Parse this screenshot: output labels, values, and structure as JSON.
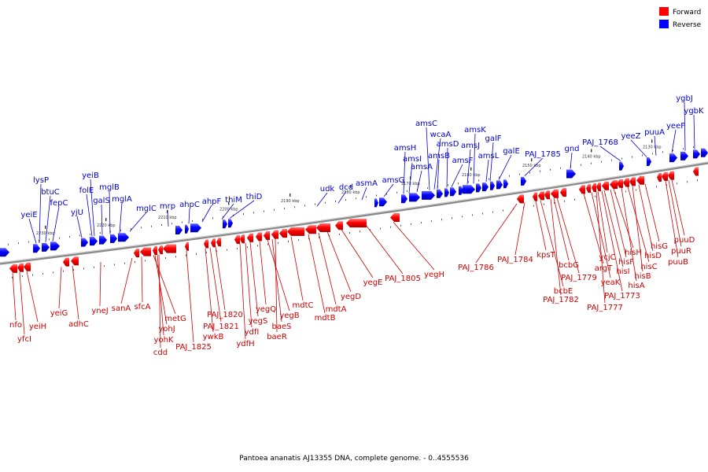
{
  "legend": {
    "forward_label": "Forward",
    "reverse_label": "Reverse",
    "forward_color": "#ff0000",
    "reverse_color": "#0000ff"
  },
  "caption": "Pantoea ananatis AJ13355 DNA, complete genome. - 0..4555536",
  "ticks": [
    "2230 kbp",
    "2220 kbp",
    "2210 kbp",
    "2200 kbp",
    "2190 kbp",
    "2180 kbp",
    "2170 kbp",
    "2160 kbp",
    "2150 kbp",
    "2140 kbp",
    "2130 kbp"
  ],
  "reverse_genes": [
    "yeiE",
    "lysP",
    "btuC",
    "fepC",
    "yjU",
    "folE",
    "yeiB",
    "galS",
    "mglB",
    "mglA",
    "mglC",
    "mrp",
    "ahpC",
    "ahpF",
    "thiM",
    "thiD",
    "udk",
    "dcd",
    "asmA",
    "amsG",
    "amsH",
    "amsI",
    "amsA",
    "amsC",
    "wcaA",
    "amsB",
    "amsD",
    "amsF",
    "amsJ",
    "amsK",
    "amsL",
    "galF",
    "galE",
    "PAJ_1785",
    "gnd",
    "PAJ_1768",
    "yeeZ",
    "puuA",
    "yeeF",
    "ygbJ",
    "ygbK"
  ],
  "forward_genes": [
    "nfo",
    "yfcI",
    "yeiH",
    "yeiG",
    "adhC",
    "yneJ",
    "sanA",
    "sfcA",
    "metG",
    "yohJ",
    "yohK",
    "cdd",
    "PAJ_1825",
    "ywkB",
    "PAJ_1821",
    "PAJ_1820",
    "ydfH",
    "ydfI",
    "yegS",
    "yegQ",
    "yegB",
    "baeS",
    "baeR",
    "mdtC",
    "mdtB",
    "mdtA",
    "yegD",
    "yegE",
    "PAJ_1805",
    "yegH",
    "PAJ_1786",
    "PAJ_1784",
    "kpsT",
    "bcbE",
    "PAJ_1782",
    "bcbG",
    "PAJ_1779",
    "argT",
    "yeaK",
    "ycjC",
    "hisI",
    "hisF",
    "hisH",
    "hisA",
    "hisC",
    "hisB",
    "hisD",
    "hisG",
    "PAJ_1777",
    "PAJ_1773",
    "puuB",
    "puuR",
    "puuD"
  ]
}
